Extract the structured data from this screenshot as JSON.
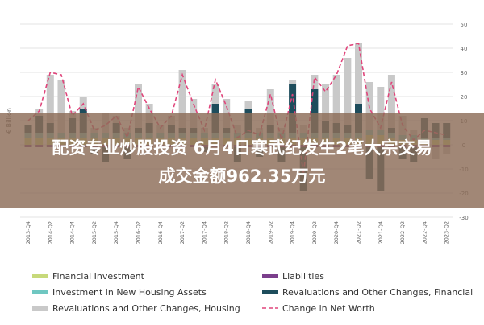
{
  "chart_data": {
    "type": "bar",
    "stacked": true,
    "y_label": "€ Billion",
    "ylim": [
      -30,
      50
    ],
    "yticks": [
      -30,
      -20,
      -10,
      0,
      10,
      20,
      30,
      40,
      50
    ],
    "grid": true,
    "categories": [
      "2013-Q4",
      null,
      "2014-Q2",
      null,
      "2014-Q4",
      null,
      "2015-Q2",
      null,
      "2015-Q4",
      null,
      "2016-Q2",
      null,
      "2016-Q4",
      null,
      "2017-Q2",
      null,
      "2017-Q4",
      null,
      "2018-Q2",
      null,
      "2018-Q4",
      null,
      "2019-Q2",
      null,
      "2019-Q4",
      null,
      "2020-Q2",
      null,
      "2020-Q4",
      null,
      "2021-Q2",
      null,
      "2021-Q4",
      null,
      "2022-Q2",
      null,
      "2022-Q4",
      null,
      "2023-Q2"
    ],
    "series": [
      {
        "name": "Financial Investment",
        "color": "#c7d97a",
        "values": [
          3,
          3,
          3,
          3,
          3,
          3,
          3,
          3,
          3,
          3,
          3,
          3,
          3,
          3,
          3,
          3,
          3,
          3,
          3,
          3,
          3,
          3,
          3,
          3,
          3,
          3,
          3,
          3,
          3,
          3,
          3,
          4,
          4,
          3,
          2,
          2,
          2,
          2,
          2
        ]
      },
      {
        "name": "Liabilities",
        "color": "#7b3f8c",
        "values": [
          -1,
          -1,
          -1,
          -1,
          -1,
          -1,
          -1,
          -1,
          -1,
          -1,
          -1,
          -1,
          -1,
          -1,
          -1,
          -1,
          -1,
          -1,
          -1,
          -1,
          -1,
          -1,
          -1,
          -1,
          -1,
          -1,
          -1,
          -1,
          -1,
          -1,
          -1,
          -1,
          -1,
          -1,
          -1,
          -1,
          -1,
          -1,
          -1
        ]
      },
      {
        "name": "Investment in New Housing Assets",
        "color": "#6fc7c1",
        "values": [
          2,
          2,
          2,
          2,
          2,
          2,
          2,
          2,
          2,
          2,
          2,
          2,
          2,
          2,
          2,
          2,
          2,
          2,
          2,
          2,
          2,
          2,
          2,
          2,
          2,
          2,
          2,
          2,
          2,
          2,
          2,
          2,
          2,
          2,
          2,
          2,
          1,
          1,
          1
        ]
      },
      {
        "name": "Revaluations and Other Changes, Financial",
        "color": "#1e4d5c",
        "values": [
          3,
          7,
          4,
          0,
          6,
          10,
          -3,
          -6,
          4,
          -5,
          2,
          4,
          0,
          3,
          2,
          2,
          -2,
          12,
          2,
          -6,
          10,
          -4,
          3,
          -6,
          20,
          -18,
          18,
          5,
          4,
          3,
          12,
          -13,
          -18,
          2,
          -5,
          -6,
          8,
          6,
          6
        ]
      },
      {
        "name": "Revaluations and Other Changes, Housing",
        "color": "#c9c9c9",
        "values": [
          0,
          3,
          20,
          22,
          3,
          5,
          2,
          8,
          3,
          2,
          18,
          8,
          3,
          4,
          24,
          12,
          2,
          8,
          12,
          3,
          3,
          2,
          15,
          2,
          2,
          3,
          6,
          15,
          20,
          28,
          25,
          20,
          18,
          22,
          8,
          2,
          -3,
          -5,
          -3
        ]
      },
      {
        "name": "Change in Net Worth",
        "color": "#e0457b",
        "type": "line",
        "dashed": true,
        "values": [
          10,
          14,
          30,
          29,
          12,
          17,
          6,
          8,
          12,
          3,
          24,
          15,
          7,
          12,
          29,
          17,
          6,
          27,
          16,
          3,
          6,
          4,
          21,
          2,
          21,
          -12,
          28,
          22,
          29,
          41,
          42,
          15,
          7,
          26,
          8,
          2,
          6,
          5,
          4
        ]
      }
    ],
    "legend_order": [
      0,
      1,
      2,
      3,
      4,
      5
    ]
  },
  "banner": {
    "lines": [
      "配资专业炒股投资 6月4日寒武纪发生2笔大宗交易",
      "成交金额962.35万元"
    ]
  }
}
